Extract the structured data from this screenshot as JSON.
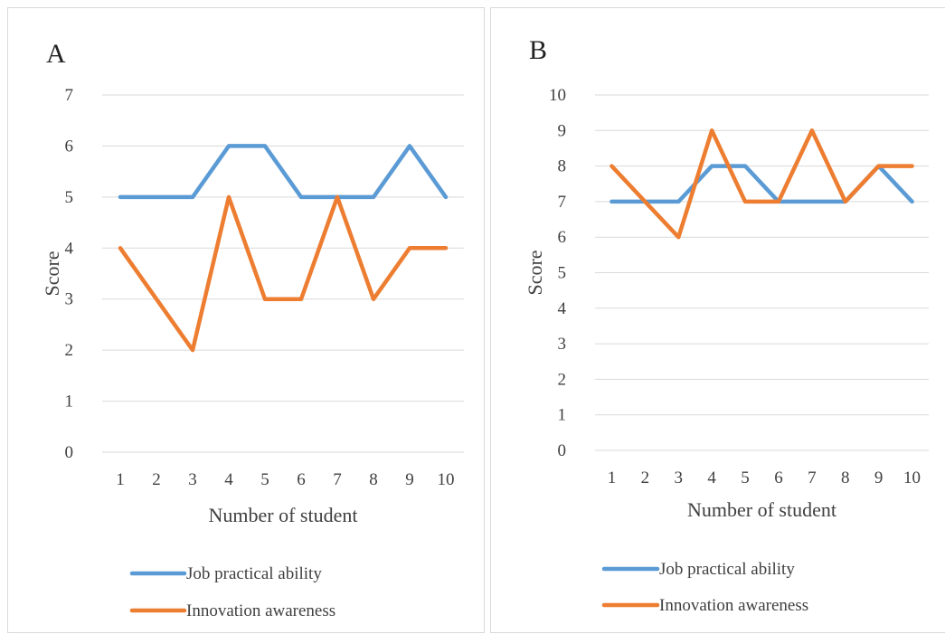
{
  "chart_data": [
    {
      "type": "line",
      "panel_label": "A",
      "xlabel": "Number of  student",
      "ylabel": "Score",
      "categories": [
        "1",
        "2",
        "3",
        "4",
        "5",
        "6",
        "7",
        "8",
        "9",
        "10"
      ],
      "ylim": [
        0,
        7
      ],
      "yticks": [
        0,
        1,
        2,
        3,
        4,
        5,
        6,
        7
      ],
      "grid": true,
      "legend_position": "bottom",
      "series": [
        {
          "name": "Job practical ability",
          "color": "#5b9bd5",
          "values": [
            5,
            5,
            5,
            6,
            6,
            5,
            5,
            5,
            6,
            5
          ]
        },
        {
          "name": "Innovation awareness",
          "color": "#ed7d31",
          "values": [
            4,
            3,
            2,
            5,
            3,
            3,
            5,
            3,
            4,
            4
          ]
        }
      ]
    },
    {
      "type": "line",
      "panel_label": "B",
      "xlabel": "Number of  student",
      "ylabel": "Score",
      "categories": [
        "1",
        "2",
        "3",
        "4",
        "5",
        "6",
        "7",
        "8",
        "9",
        "10"
      ],
      "ylim": [
        0,
        10
      ],
      "yticks": [
        0,
        1,
        2,
        3,
        4,
        5,
        6,
        7,
        8,
        9,
        10
      ],
      "grid": true,
      "legend_position": "bottom",
      "series": [
        {
          "name": "Job practical ability",
          "color": "#5b9bd5",
          "values": [
            7,
            7,
            7,
            8,
            8,
            7,
            7,
            7,
            8,
            7
          ]
        },
        {
          "name": "Innovation awareness",
          "color": "#ed7d31",
          "values": [
            8,
            7,
            6,
            9,
            7,
            7,
            9,
            7,
            8,
            8
          ]
        }
      ]
    }
  ]
}
